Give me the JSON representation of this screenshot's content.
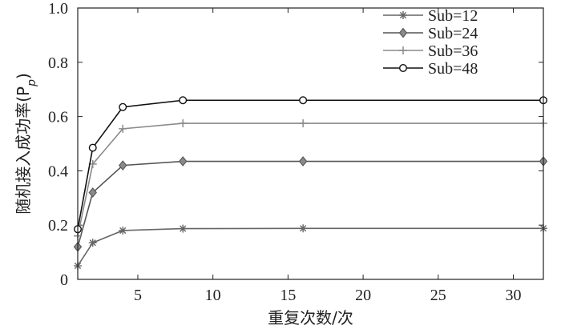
{
  "chart_data": {
    "type": "line",
    "title": "",
    "xlabel": "重复次数/次",
    "ylabel": "随机接入成功率(P",
    "ylabel_sub": "p",
    "ylabel_close": ")",
    "xlim": [
      1,
      32
    ],
    "ylim": [
      0,
      1.0
    ],
    "xticks": [
      5,
      10,
      15,
      20,
      25,
      30
    ],
    "xtick_labels": [
      "5",
      "10",
      "15",
      "20",
      "25",
      "30"
    ],
    "yticks": [
      0,
      0.2,
      0.4,
      0.6,
      0.8,
      1.0
    ],
    "ytick_labels": [
      "0",
      "0.2",
      "0.4",
      "0.6",
      "0.8",
      "1.0"
    ],
    "grid": false,
    "legend_position": "top-right",
    "x": [
      1,
      2,
      4,
      8,
      16,
      32
    ],
    "series": [
      {
        "name": "Sub=12",
        "marker": "asterisk",
        "color": "#666666",
        "values": [
          0.05,
          0.135,
          0.18,
          0.187,
          0.188,
          0.188
        ]
      },
      {
        "name": "Sub=24",
        "marker": "diamond",
        "color": "#555555",
        "values": [
          0.12,
          0.32,
          0.42,
          0.435,
          0.435,
          0.435
        ]
      },
      {
        "name": "Sub=36",
        "marker": "plus",
        "color": "#8a8a8a",
        "values": [
          0.16,
          0.425,
          0.555,
          0.575,
          0.575,
          0.575
        ]
      },
      {
        "name": "Sub=48",
        "marker": "circle",
        "color": "#111111",
        "values": [
          0.185,
          0.485,
          0.635,
          0.66,
          0.66,
          0.66
        ]
      }
    ]
  }
}
